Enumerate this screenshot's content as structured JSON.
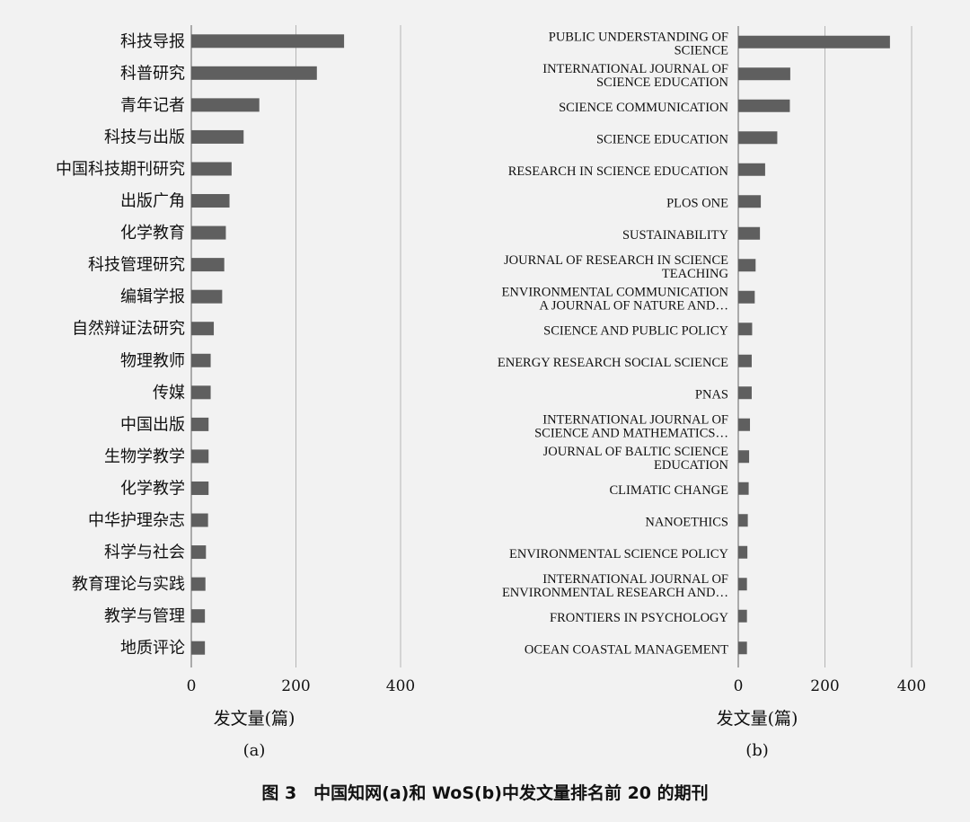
{
  "chart_data": [
    {
      "type": "bar",
      "orientation": "horizontal",
      "panel_label": "(a)",
      "xlabel": "发文量(篇)",
      "xlim": [
        0,
        400
      ],
      "xticks": [
        "0",
        "200",
        "400"
      ],
      "grid": "vertical",
      "color": "#5f5f5f",
      "categories": [
        "科技导报",
        "科普研究",
        "青年记者",
        "科技与出版",
        "中国科技期刊研究",
        "出版广角",
        "化学教育",
        "科技管理研究",
        "编辑学报",
        "自然辩证法研究",
        "物理教师",
        "传媒",
        "中国出版",
        "生物学教学",
        "化学教学",
        "中华护理杂志",
        "科学与社会",
        "教育理论与实践",
        "教学与管理",
        "地质评论"
      ],
      "values": [
        292,
        240,
        130,
        100,
        77,
        73,
        66,
        63,
        59,
        43,
        37,
        37,
        33,
        33,
        33,
        32,
        28,
        27,
        26,
        26
      ]
    },
    {
      "type": "bar",
      "orientation": "horizontal",
      "panel_label": "(b)",
      "xlabel": "发文量(篇)",
      "xlim": [
        0,
        400
      ],
      "xticks": [
        "0",
        "200",
        "400"
      ],
      "grid": "vertical",
      "color": "#5f5f5f",
      "categories": [
        [
          "PUBLIC UNDERSTANDING OF",
          "SCIENCE"
        ],
        [
          "INTERNATIONAL JOURNAL OF",
          "SCIENCE EDUCATION"
        ],
        [
          "SCIENCE COMMUNICATION"
        ],
        [
          "SCIENCE EDUCATION"
        ],
        [
          "RESEARCH IN SCIENCE EDUCATION"
        ],
        [
          "PLOS ONE"
        ],
        [
          "SUSTAINABILITY"
        ],
        [
          "JOURNAL OF RESEARCH IN SCIENCE",
          "TEACHING"
        ],
        [
          "ENVIRONMENTAL COMMUNICATION",
          "A JOURNAL OF NATURE AND…"
        ],
        [
          "SCIENCE AND PUBLIC POLICY"
        ],
        [
          "ENERGY RESEARCH SOCIAL SCIENCE"
        ],
        [
          "PNAS"
        ],
        [
          "INTERNATIONAL JOURNAL OF",
          "SCIENCE AND MATHEMATICS…"
        ],
        [
          "JOURNAL OF BALTIC SCIENCE",
          "EDUCATION"
        ],
        [
          "CLIMATIC CHANGE"
        ],
        [
          "NANOETHICS"
        ],
        [
          "ENVIRONMENTAL SCIENCE POLICY"
        ],
        [
          "INTERNATIONAL JOURNAL OF",
          "ENVIRONMENTAL RESEARCH AND…"
        ],
        [
          "FRONTIERS IN PSYCHOLOGY"
        ],
        [
          "OCEAN COASTAL MANAGEMENT"
        ]
      ],
      "values": [
        350,
        120,
        119,
        90,
        62,
        52,
        50,
        40,
        38,
        32,
        31,
        31,
        27,
        25,
        24,
        22,
        21,
        20,
        20,
        20
      ]
    }
  ],
  "caption": "图 3　中国知网(a)和 WoS(b)中发文量排名前 20 的期刊"
}
